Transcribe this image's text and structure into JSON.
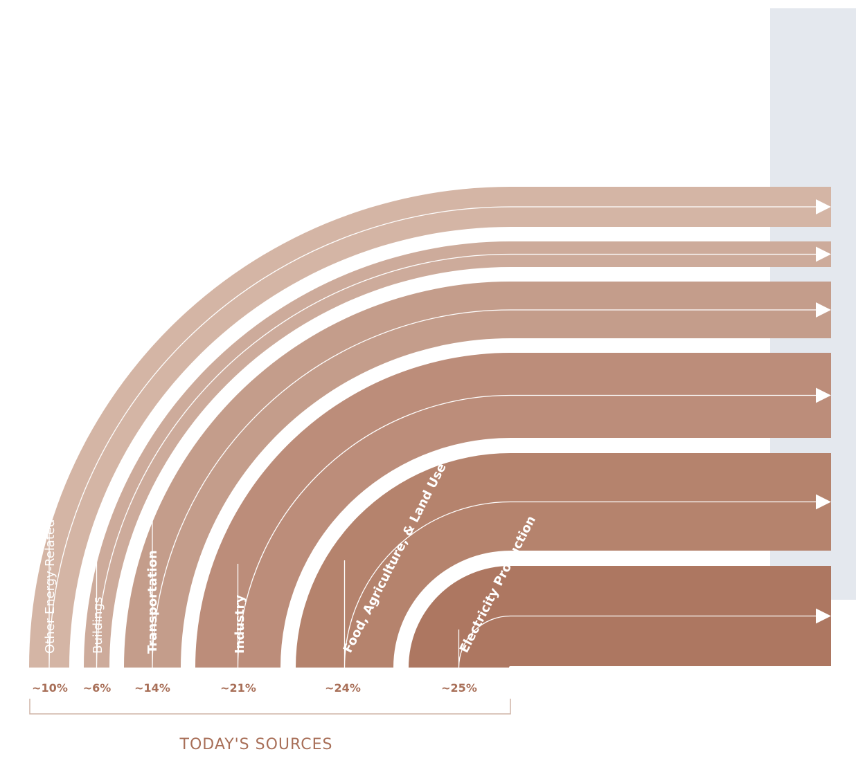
{
  "colors": {
    "background_panel": "#e4e8ee",
    "arrow_line": "#ffffff",
    "accent_text": "#a86f58",
    "bracket": "#cfb3a6"
  },
  "bands": [
    {
      "label": "Other Energy-Related Emissions",
      "percent": "~10%",
      "color": "#d4b5a5",
      "bold": false
    },
    {
      "label": "Buildings",
      "percent": "~6%",
      "color": "#cdab9b",
      "bold": false
    },
    {
      "label": "Transportation",
      "percent": "~14%",
      "color": "#c49d8b",
      "bold": true
    },
    {
      "label": "Industry",
      "percent": "~21%",
      "color": "#bc8d7a",
      "bold": true
    },
    {
      "label": "Food, Agriculture, & Land Use",
      "percent": "~24%",
      "color": "#b5836d",
      "bold": true
    },
    {
      "label": "Electricity Production",
      "percent": "~25%",
      "color": "#ad7761",
      "bold": true
    }
  ],
  "footer": {
    "label": "TODAY'S SOURCES"
  }
}
